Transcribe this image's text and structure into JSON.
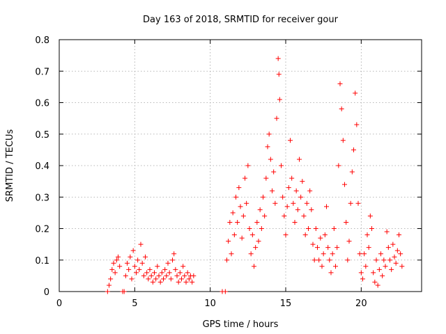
{
  "chart_data": {
    "type": "scatter",
    "title": "Day 163 of 2018, SRMTID for receiver gour",
    "xlabel": "GPS time / hours",
    "ylabel": "SRMTID / TECUs",
    "xlim": [
      0,
      24
    ],
    "ylim": [
      0,
      0.8
    ],
    "xticks": [
      0,
      5,
      10,
      15,
      20
    ],
    "xtick_labels": [
      "0",
      "5",
      "10",
      "15",
      "20"
    ],
    "yticks": [
      0,
      0.1,
      0.2,
      0.3,
      0.4,
      0.5,
      0.6,
      0.7,
      0.8
    ],
    "ytick_labels": [
      "0",
      "0.1",
      "0.2",
      "0.3",
      "0.4",
      "0.5",
      "0.6",
      "0.7",
      "0.8"
    ],
    "grid": true,
    "marker": "+",
    "series_color": "#ff0000",
    "series": [
      {
        "name": "SRMTID",
        "points": [
          [
            3.2,
            0.0
          ],
          [
            3.3,
            0.02
          ],
          [
            3.4,
            0.04
          ],
          [
            3.5,
            0.07
          ],
          [
            3.6,
            0.09
          ],
          [
            3.7,
            0.06
          ],
          [
            3.8,
            0.1
          ],
          [
            3.9,
            0.11
          ],
          [
            4.0,
            0.08
          ],
          [
            4.2,
            0.0
          ],
          [
            4.3,
            0.0
          ],
          [
            4.4,
            0.05
          ],
          [
            4.5,
            0.09
          ],
          [
            4.6,
            0.07
          ],
          [
            4.7,
            0.11
          ],
          [
            4.8,
            0.04
          ],
          [
            4.9,
            0.13
          ],
          [
            5.0,
            0.08
          ],
          [
            5.1,
            0.06
          ],
          [
            5.2,
            0.1
          ],
          [
            5.3,
            0.07
          ],
          [
            5.4,
            0.15
          ],
          [
            5.5,
            0.09
          ],
          [
            5.6,
            0.05
          ],
          [
            5.7,
            0.11
          ],
          [
            5.8,
            0.06
          ],
          [
            5.9,
            0.04
          ],
          [
            6.0,
            0.07
          ],
          [
            6.1,
            0.05
          ],
          [
            6.2,
            0.03
          ],
          [
            6.3,
            0.06
          ],
          [
            6.4,
            0.04
          ],
          [
            6.5,
            0.08
          ],
          [
            6.6,
            0.05
          ],
          [
            6.7,
            0.03
          ],
          [
            6.8,
            0.06
          ],
          [
            6.9,
            0.04
          ],
          [
            7.0,
            0.07
          ],
          [
            7.1,
            0.05
          ],
          [
            7.2,
            0.09
          ],
          [
            7.3,
            0.06
          ],
          [
            7.4,
            0.04
          ],
          [
            7.5,
            0.1
          ],
          [
            7.6,
            0.12
          ],
          [
            7.7,
            0.07
          ],
          [
            7.8,
            0.05
          ],
          [
            7.9,
            0.03
          ],
          [
            8.0,
            0.06
          ],
          [
            8.1,
            0.04
          ],
          [
            8.2,
            0.08
          ],
          [
            8.3,
            0.05
          ],
          [
            8.4,
            0.03
          ],
          [
            8.5,
            0.06
          ],
          [
            8.6,
            0.04
          ],
          [
            8.7,
            0.05
          ],
          [
            8.8,
            0.03
          ],
          [
            8.9,
            0.05
          ],
          [
            10.8,
            0.0
          ],
          [
            11.0,
            0.0
          ],
          [
            11.1,
            0.1
          ],
          [
            11.2,
            0.16
          ],
          [
            11.3,
            0.22
          ],
          [
            11.4,
            0.12
          ],
          [
            11.5,
            0.25
          ],
          [
            11.6,
            0.18
          ],
          [
            11.7,
            0.3
          ],
          [
            11.8,
            0.22
          ],
          [
            11.9,
            0.33
          ],
          [
            12.0,
            0.27
          ],
          [
            12.1,
            0.17
          ],
          [
            12.2,
            0.24
          ],
          [
            12.3,
            0.36
          ],
          [
            12.4,
            0.28
          ],
          [
            12.5,
            0.4
          ],
          [
            12.6,
            0.2
          ],
          [
            12.7,
            0.12
          ],
          [
            12.8,
            0.18
          ],
          [
            12.9,
            0.08
          ],
          [
            13.0,
            0.14
          ],
          [
            13.1,
            0.22
          ],
          [
            13.2,
            0.16
          ],
          [
            13.3,
            0.26
          ],
          [
            13.4,
            0.2
          ],
          [
            13.5,
            0.3
          ],
          [
            13.6,
            0.24
          ],
          [
            13.7,
            0.36
          ],
          [
            13.8,
            0.46
          ],
          [
            13.9,
            0.5
          ],
          [
            14.0,
            0.42
          ],
          [
            14.1,
            0.32
          ],
          [
            14.2,
            0.38
          ],
          [
            14.3,
            0.28
          ],
          [
            14.4,
            0.55
          ],
          [
            14.5,
            0.74
          ],
          [
            14.55,
            0.69
          ],
          [
            14.6,
            0.61
          ],
          [
            14.7,
            0.4
          ],
          [
            14.8,
            0.3
          ],
          [
            14.9,
            0.24
          ],
          [
            15.0,
            0.18
          ],
          [
            15.1,
            0.27
          ],
          [
            15.2,
            0.33
          ],
          [
            15.3,
            0.48
          ],
          [
            15.4,
            0.36
          ],
          [
            15.5,
            0.28
          ],
          [
            15.6,
            0.22
          ],
          [
            15.7,
            0.32
          ],
          [
            15.8,
            0.26
          ],
          [
            15.9,
            0.42
          ],
          [
            16.0,
            0.3
          ],
          [
            16.1,
            0.35
          ],
          [
            16.2,
            0.24
          ],
          [
            16.3,
            0.18
          ],
          [
            16.4,
            0.28
          ],
          [
            16.5,
            0.2
          ],
          [
            16.6,
            0.32
          ],
          [
            16.7,
            0.26
          ],
          [
            16.8,
            0.15
          ],
          [
            16.9,
            0.1
          ],
          [
            17.0,
            0.2
          ],
          [
            17.1,
            0.14
          ],
          [
            17.2,
            0.1
          ],
          [
            17.3,
            0.17
          ],
          [
            17.4,
            0.08
          ],
          [
            17.5,
            0.12
          ],
          [
            17.6,
            0.18
          ],
          [
            17.7,
            0.27
          ],
          [
            17.8,
            0.14
          ],
          [
            17.9,
            0.1
          ],
          [
            18.0,
            0.06
          ],
          [
            18.1,
            0.12
          ],
          [
            18.2,
            0.2
          ],
          [
            18.3,
            0.08
          ],
          [
            18.4,
            0.14
          ],
          [
            18.5,
            0.4
          ],
          [
            18.6,
            0.66
          ],
          [
            18.7,
            0.58
          ],
          [
            18.8,
            0.48
          ],
          [
            18.9,
            0.34
          ],
          [
            19.0,
            0.22
          ],
          [
            19.1,
            0.1
          ],
          [
            19.2,
            0.16
          ],
          [
            19.3,
            0.28
          ],
          [
            19.4,
            0.38
          ],
          [
            19.5,
            0.45
          ],
          [
            19.6,
            0.63
          ],
          [
            19.7,
            0.53
          ],
          [
            19.8,
            0.28
          ],
          [
            19.9,
            0.12
          ],
          [
            20.0,
            0.06
          ],
          [
            20.1,
            0.04
          ],
          [
            20.2,
            0.12
          ],
          [
            20.3,
            0.08
          ],
          [
            20.4,
            0.18
          ],
          [
            20.5,
            0.14
          ],
          [
            20.6,
            0.24
          ],
          [
            20.7,
            0.2
          ],
          [
            20.8,
            0.06
          ],
          [
            20.9,
            0.03
          ],
          [
            21.0,
            0.1
          ],
          [
            21.1,
            0.02
          ],
          [
            21.2,
            0.07
          ],
          [
            21.3,
            0.12
          ],
          [
            21.4,
            0.05
          ],
          [
            21.5,
            0.1
          ],
          [
            21.6,
            0.08
          ],
          [
            21.7,
            0.19
          ],
          [
            21.8,
            0.14
          ],
          [
            21.9,
            0.1
          ],
          [
            22.0,
            0.07
          ],
          [
            22.1,
            0.15
          ],
          [
            22.2,
            0.11
          ],
          [
            22.3,
            0.09
          ],
          [
            22.4,
            0.13
          ],
          [
            22.5,
            0.18
          ],
          [
            22.6,
            0.12
          ],
          [
            22.7,
            0.08
          ]
        ]
      }
    ]
  }
}
